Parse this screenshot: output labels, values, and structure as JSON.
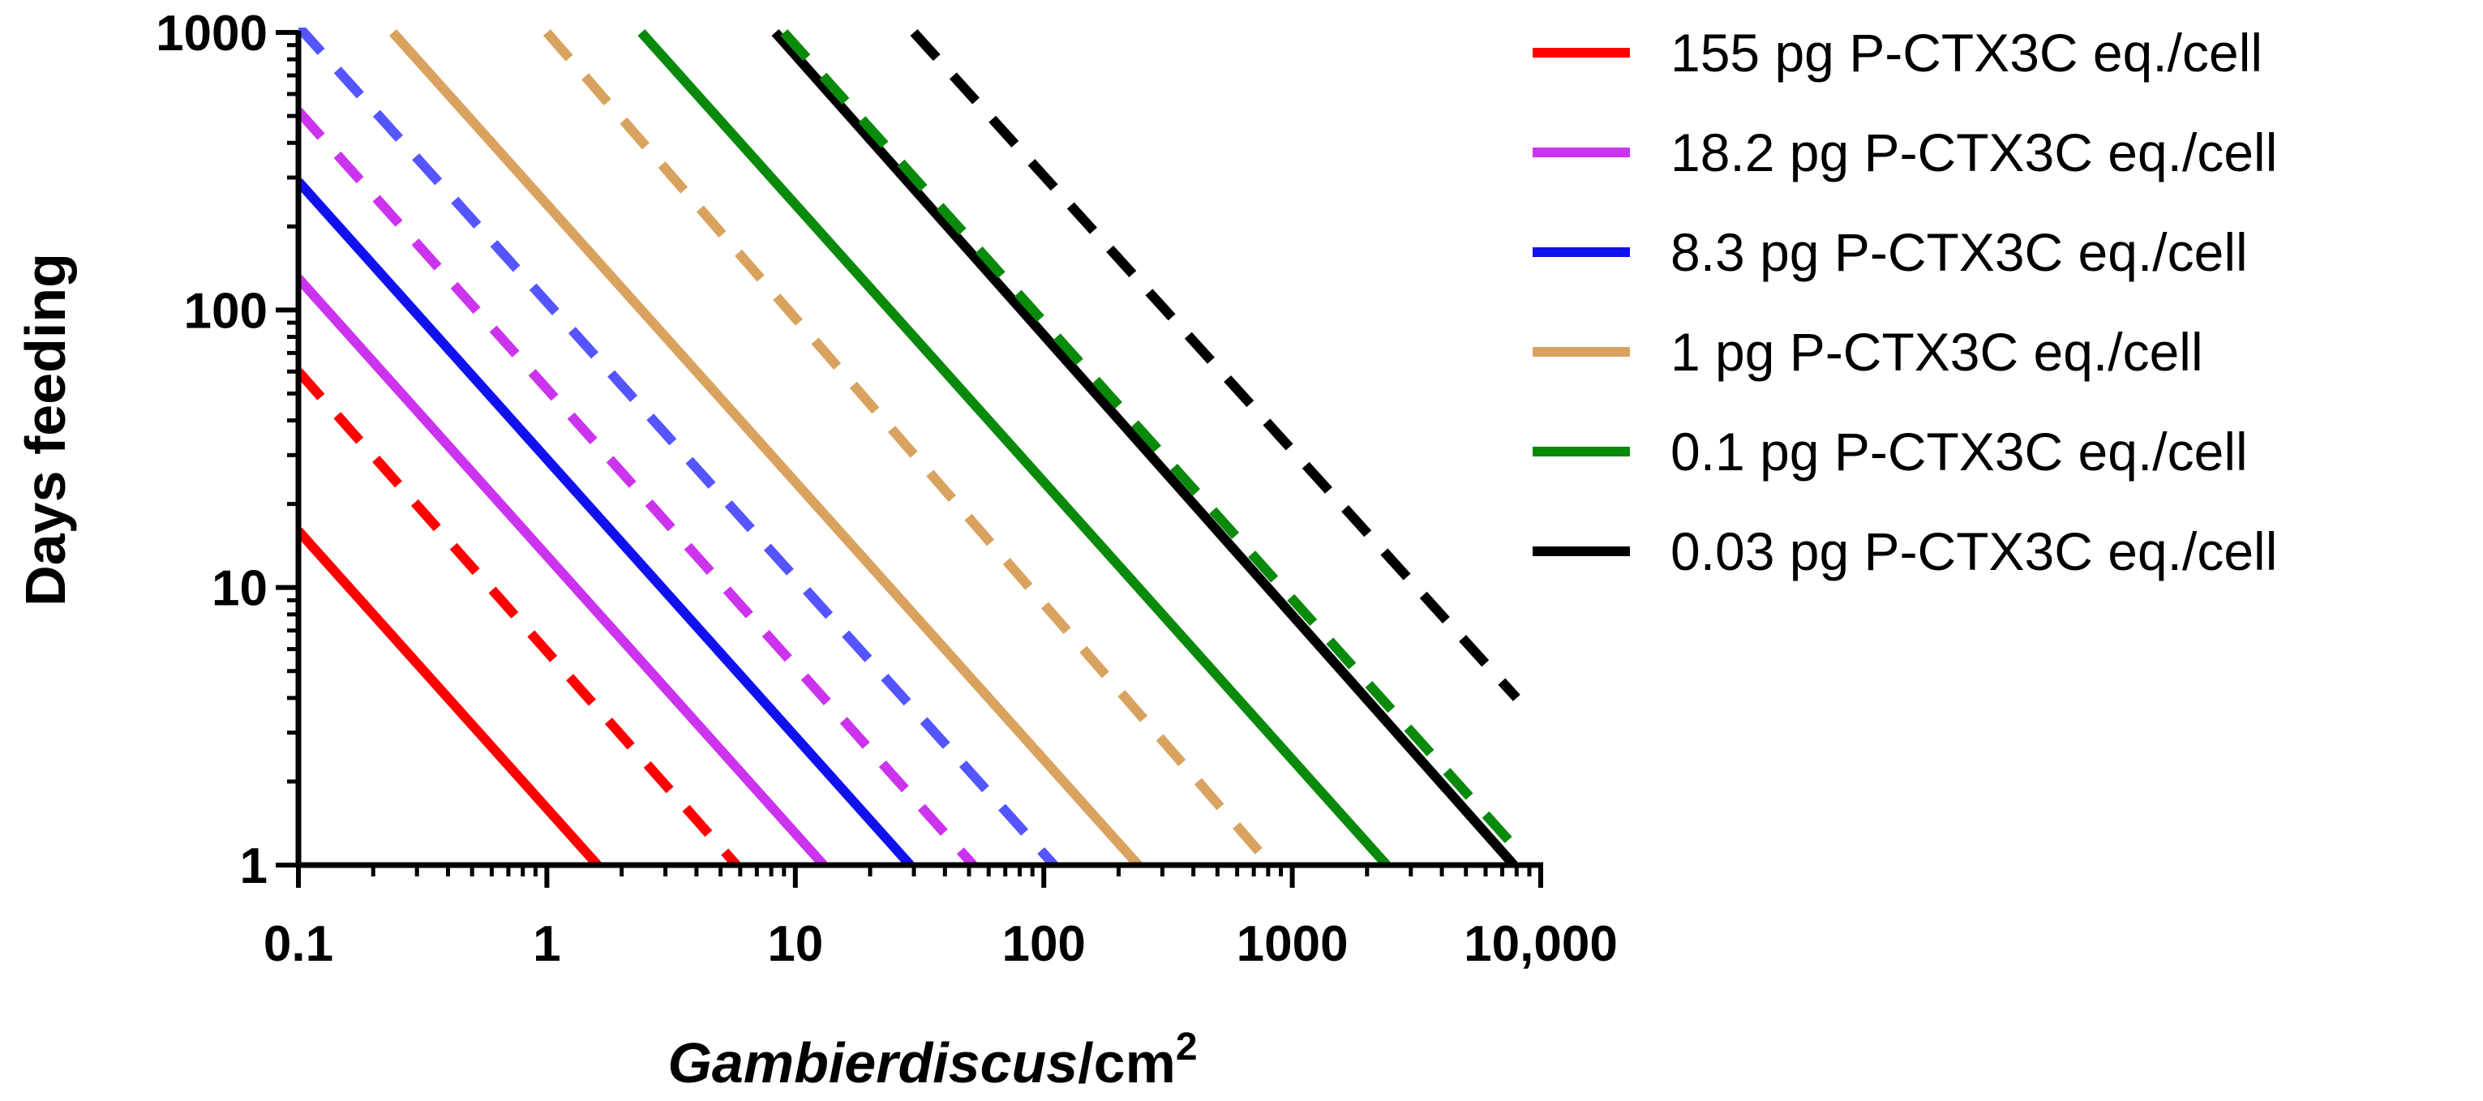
{
  "chart_data": {
    "type": "line",
    "title": "",
    "xlabel": {
      "italic": "Gambierdiscus",
      "rest": "/cm",
      "sup": "2"
    },
    "ylabel": "Days feeding",
    "x_scale": "log",
    "y_scale": "log",
    "xlim": [
      0.1,
      10000
    ],
    "ylim": [
      1,
      1000
    ],
    "x_ticks": [
      {
        "value": 0.1,
        "label": "0.1"
      },
      {
        "value": 1,
        "label": "1"
      },
      {
        "value": 10,
        "label": "10"
      },
      {
        "value": 100,
        "label": "100"
      },
      {
        "value": 1000,
        "label": "1000"
      },
      {
        "value": 10000,
        "label": "10,000"
      }
    ],
    "y_ticks": [
      {
        "value": 1,
        "label": "1"
      },
      {
        "value": 10,
        "label": "10"
      },
      {
        "value": 100,
        "label": "100"
      },
      {
        "value": 1000,
        "label": "1000"
      }
    ],
    "grid": false,
    "legend_position": "right",
    "legend": [
      {
        "label": "155 pg P-CTX3C eq./cell",
        "color": "#ff0000"
      },
      {
        "label": "18.2 pg P-CTX3C eq./cell",
        "color": "#cc33ee"
      },
      {
        "label": "8.3 pg P-CTX3C eq./cell",
        "color": "#1111ee"
      },
      {
        "label": "1 pg P-CTX3C eq./cell",
        "color": "#d9a25f"
      },
      {
        "label": "0.1 pg P-CTX3C eq./cell",
        "color": "#0a8a0a"
      },
      {
        "label": "0.03 pg P-CTX3C eq./cell",
        "color": "#000000"
      }
    ],
    "series": [
      {
        "color": "#ff0000",
        "style": "solid",
        "x": [
          0.1,
          1.6
        ],
        "y": [
          16,
          1
        ]
      },
      {
        "color": "#ff0000",
        "style": "dashed",
        "x": [
          0.1,
          5.8
        ],
        "y": [
          60,
          1
        ]
      },
      {
        "color": "#cc33ee",
        "style": "solid",
        "x": [
          0.1,
          13
        ],
        "y": [
          130,
          1
        ]
      },
      {
        "color": "#cc33ee",
        "style": "dashed",
        "x": [
          0.1,
          52
        ],
        "y": [
          520,
          1
        ]
      },
      {
        "color": "#1111ee",
        "style": "solid",
        "x": [
          0.1,
          29
        ],
        "y": [
          290,
          1
        ]
      },
      {
        "color": "#5555ff",
        "style": "dashed",
        "x": [
          0.1,
          110
        ],
        "y": [
          1050,
          1
        ]
      },
      {
        "color": "#d9a25f",
        "style": "solid",
        "x": [
          0.24,
          240
        ],
        "y": [
          1000,
          1
        ]
      },
      {
        "color": "#d9a25f",
        "style": "dashed",
        "x": [
          1.0,
          820
        ],
        "y": [
          1000,
          1
        ]
      },
      {
        "color": "#0a8a0a",
        "style": "solid",
        "x": [
          2.4,
          2400
        ],
        "y": [
          1000,
          1
        ]
      },
      {
        "color": "#000000",
        "style": "solid",
        "x": [
          8.3,
          7800
        ],
        "y": [
          1000,
          1
        ]
      },
      {
        "color": "#0a8a0a",
        "style": "dashed",
        "x": [
          9.0,
          8300
        ],
        "y": [
          1000,
          1.1
        ]
      },
      {
        "color": "#000000",
        "style": "dashed",
        "x": [
          30,
          8000
        ],
        "y": [
          1000,
          4
        ]
      }
    ]
  }
}
